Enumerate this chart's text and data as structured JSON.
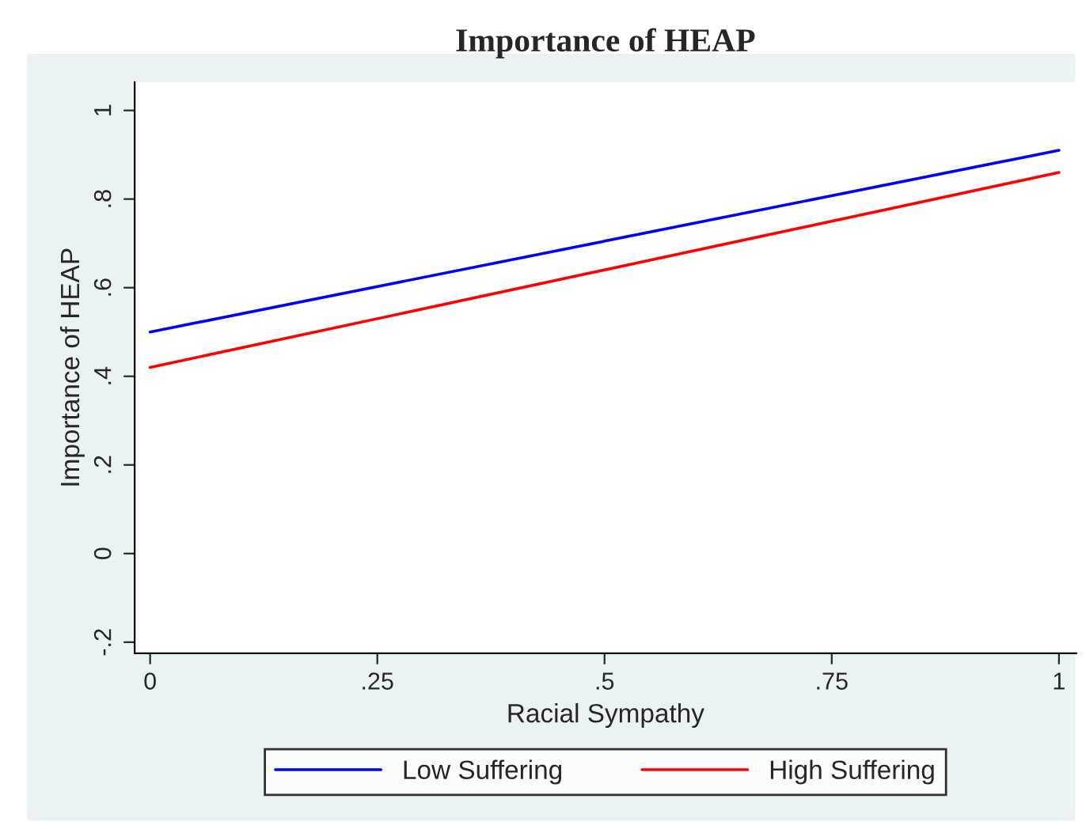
{
  "chart_data": {
    "type": "line",
    "title": "Importance of HEAP",
    "xlabel": "Racial Sympathy",
    "ylabel": "Importance of HEAP",
    "x": [
      0,
      1
    ],
    "series": [
      {
        "name": "Low Suffering",
        "color": "#0000ff",
        "values": [
          0.5,
          0.91
        ]
      },
      {
        "name": "High Suffering",
        "color": "#ff0000",
        "values": [
          0.42,
          0.86
        ]
      }
    ],
    "xlim": [
      -0.017,
      1.019
    ],
    "ylim": [
      -0.225,
      1.064
    ],
    "xticks": [
      0,
      {
        "value": 0.25,
        "label": ".25"
      },
      {
        "value": 0.5,
        "label": ".5"
      },
      {
        "value": 0.75,
        "label": ".75"
      },
      1
    ],
    "yticks": [
      {
        "value": -0.2,
        "label": "-.2"
      },
      0,
      {
        "value": 0.2,
        "label": ".2"
      },
      {
        "value": 0.4,
        "label": ".4"
      },
      {
        "value": 0.6,
        "label": ".6"
      },
      {
        "value": 0.8,
        "label": ".8"
      },
      1
    ],
    "grid": false,
    "legend": "bottom",
    "line_style": "solid",
    "marker": "none"
  }
}
